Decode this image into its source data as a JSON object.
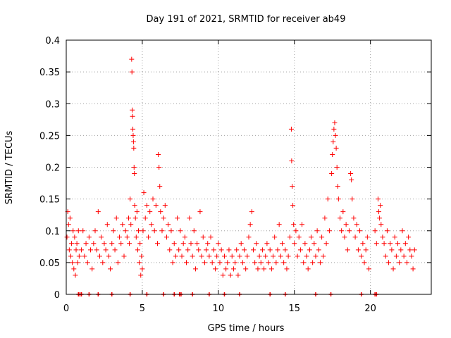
{
  "chart_data": {
    "type": "scatter",
    "title": "Day 191 of 2021, SRMTID for receiver ab49",
    "xlabel": "GPS time / hours",
    "ylabel": "SRMTID / TECUs",
    "xlim": [
      0,
      24
    ],
    "ylim": [
      0,
      0.4
    ],
    "xticks": [
      0,
      5,
      10,
      15,
      20
    ],
    "xtick_labels": [
      "0",
      "5",
      "10",
      "15",
      "20"
    ],
    "yticks": [
      0,
      0.05,
      0.1,
      0.15,
      0.2,
      0.25,
      0.3,
      0.35,
      0.4
    ],
    "ytick_labels": [
      "0",
      "0.05",
      "0.1",
      "0.15",
      "0.2",
      "0.25",
      "0.3",
      "0.35",
      "0.4"
    ],
    "grid": true,
    "marker": "plus",
    "color": "#ff0000",
    "series": [
      {
        "name": "SRMTID",
        "points": [
          [
            0.05,
            0.09
          ],
          [
            0.1,
            0.13
          ],
          [
            0.15,
            0.11
          ],
          [
            0.2,
            0.07
          ],
          [
            0.25,
            0.12
          ],
          [
            0.3,
            0.06
          ],
          [
            0.35,
            0.08
          ],
          [
            0.4,
            0.05
          ],
          [
            0.45,
            0.1
          ],
          [
            0.5,
            0.04
          ],
          [
            0.55,
            0.09
          ],
          [
            0.6,
            0.03
          ],
          [
            0.65,
            0.07
          ],
          [
            0.7,
            0.08
          ],
          [
            0.75,
            0.05
          ],
          [
            0.8,
            0.1
          ],
          [
            0.85,
            0.06
          ],
          [
            1.0,
            0.07
          ],
          [
            1.1,
            0.1
          ],
          [
            1.2,
            0.06
          ],
          [
            1.3,
            0.08
          ],
          [
            1.4,
            0.05
          ],
          [
            1.5,
            0.09
          ],
          [
            1.6,
            0.07
          ],
          [
            1.7,
            0.04
          ],
          [
            1.8,
            0.08
          ],
          [
            1.9,
            0.1
          ],
          [
            2.0,
            0.07
          ],
          [
            2.1,
            0.13
          ],
          [
            2.2,
            0.06
          ],
          [
            2.3,
            0.09
          ],
          [
            2.4,
            0.05
          ],
          [
            2.5,
            0.08
          ],
          [
            2.6,
            0.07
          ],
          [
            2.7,
            0.11
          ],
          [
            2.8,
            0.06
          ],
          [
            2.9,
            0.04
          ],
          [
            3.0,
            0.08
          ],
          [
            3.1,
            0.1
          ],
          [
            3.2,
            0.07
          ],
          [
            3.3,
            0.12
          ],
          [
            3.4,
            0.05
          ],
          [
            3.5,
            0.09
          ],
          [
            3.6,
            0.08
          ],
          [
            3.7,
            0.11
          ],
          [
            3.8,
            0.06
          ],
          [
            3.9,
            0.1
          ],
          [
            4.0,
            0.09
          ],
          [
            4.1,
            0.12
          ],
          [
            4.15,
            0.08
          ],
          [
            4.2,
            0.15
          ],
          [
            4.25,
            0.11
          ],
          [
            4.3,
            0.37
          ],
          [
            4.32,
            0.35
          ],
          [
            4.34,
            0.29
          ],
          [
            4.36,
            0.28
          ],
          [
            4.38,
            0.26
          ],
          [
            4.4,
            0.25
          ],
          [
            4.42,
            0.24
          ],
          [
            4.44,
            0.23
          ],
          [
            4.46,
            0.2
          ],
          [
            4.48,
            0.19
          ],
          [
            4.5,
            0.14
          ],
          [
            4.55,
            0.12
          ],
          [
            4.6,
            0.09
          ],
          [
            4.65,
            0.13
          ],
          [
            4.7,
            0.07
          ],
          [
            4.75,
            0.1
          ],
          [
            4.8,
            0.05
          ],
          [
            4.85,
            0.08
          ],
          [
            4.9,
            0.03
          ],
          [
            4.95,
            0.06
          ],
          [
            5.0,
            0.04
          ],
          [
            5.05,
            0.1
          ],
          [
            5.1,
            0.16
          ],
          [
            5.2,
            0.12
          ],
          [
            5.3,
            0.14
          ],
          [
            5.4,
            0.09
          ],
          [
            5.5,
            0.13
          ],
          [
            5.6,
            0.11
          ],
          [
            5.7,
            0.15
          ],
          [
            5.8,
            0.1
          ],
          [
            5.9,
            0.14
          ],
          [
            6.0,
            0.08
          ],
          [
            6.05,
            0.22
          ],
          [
            6.1,
            0.2
          ],
          [
            6.15,
            0.17
          ],
          [
            6.2,
            0.13
          ],
          [
            6.3,
            0.1
          ],
          [
            6.4,
            0.12
          ],
          [
            6.5,
            0.14
          ],
          [
            6.6,
            0.09
          ],
          [
            6.7,
            0.11
          ],
          [
            6.8,
            0.07
          ],
          [
            6.9,
            0.1
          ],
          [
            7.0,
            0.05
          ],
          [
            7.1,
            0.08
          ],
          [
            7.2,
            0.06
          ],
          [
            7.3,
            0.12
          ],
          [
            7.4,
            0.07
          ],
          [
            7.5,
            0.1
          ],
          [
            7.6,
            0.06
          ],
          [
            7.7,
            0.08
          ],
          [
            7.8,
            0.09
          ],
          [
            7.9,
            0.05
          ],
          [
            8.0,
            0.07
          ],
          [
            8.1,
            0.12
          ],
          [
            8.2,
            0.08
          ],
          [
            8.3,
            0.06
          ],
          [
            8.4,
            0.1
          ],
          [
            8.5,
            0.04
          ],
          [
            8.6,
            0.08
          ],
          [
            8.7,
            0.07
          ],
          [
            8.8,
            0.13
          ],
          [
            8.9,
            0.06
          ],
          [
            9.0,
            0.09
          ],
          [
            9.1,
            0.05
          ],
          [
            9.2,
            0.07
          ],
          [
            9.3,
            0.08
          ],
          [
            9.4,
            0.06
          ],
          [
            9.5,
            0.09
          ],
          [
            9.6,
            0.05
          ],
          [
            9.7,
            0.07
          ],
          [
            9.8,
            0.04
          ],
          [
            9.9,
            0.06
          ],
          [
            10.0,
            0.08
          ],
          [
            10.1,
            0.05
          ],
          [
            10.2,
            0.07
          ],
          [
            10.3,
            0.03
          ],
          [
            10.4,
            0.06
          ],
          [
            10.5,
            0.04
          ],
          [
            10.6,
            0.05
          ],
          [
            10.7,
            0.07
          ],
          [
            10.8,
            0.03
          ],
          [
            10.9,
            0.06
          ],
          [
            11.0,
            0.04
          ],
          [
            11.1,
            0.05
          ],
          [
            11.2,
            0.07
          ],
          [
            11.3,
            0.03
          ],
          [
            11.4,
            0.06
          ],
          [
            11.5,
            0.08
          ],
          [
            11.6,
            0.05
          ],
          [
            11.7,
            0.07
          ],
          [
            11.8,
            0.04
          ],
          [
            11.9,
            0.06
          ],
          [
            12.0,
            0.09
          ],
          [
            12.1,
            0.11
          ],
          [
            12.2,
            0.13
          ],
          [
            12.3,
            0.07
          ],
          [
            12.4,
            0.05
          ],
          [
            12.5,
            0.08
          ],
          [
            12.6,
            0.04
          ],
          [
            12.7,
            0.06
          ],
          [
            12.8,
            0.05
          ],
          [
            12.9,
            0.07
          ],
          [
            13.0,
            0.04
          ],
          [
            13.1,
            0.06
          ],
          [
            13.2,
            0.08
          ],
          [
            13.3,
            0.05
          ],
          [
            13.4,
            0.07
          ],
          [
            13.5,
            0.04
          ],
          [
            13.6,
            0.06
          ],
          [
            13.7,
            0.09
          ],
          [
            13.8,
            0.05
          ],
          [
            13.9,
            0.07
          ],
          [
            14.0,
            0.11
          ],
          [
            14.1,
            0.06
          ],
          [
            14.2,
            0.08
          ],
          [
            14.3,
            0.05
          ],
          [
            14.4,
            0.07
          ],
          [
            14.5,
            0.04
          ],
          [
            14.6,
            0.06
          ],
          [
            14.7,
            0.09
          ],
          [
            14.8,
            0.26
          ],
          [
            14.82,
            0.21
          ],
          [
            14.86,
            0.17
          ],
          [
            14.9,
            0.14
          ],
          [
            14.95,
            0.11
          ],
          [
            15.0,
            0.08
          ],
          [
            15.1,
            0.1
          ],
          [
            15.2,
            0.06
          ],
          [
            15.3,
            0.09
          ],
          [
            15.4,
            0.07
          ],
          [
            15.5,
            0.11
          ],
          [
            15.6,
            0.05
          ],
          [
            15.7,
            0.08
          ],
          [
            15.8,
            0.06
          ],
          [
            15.9,
            0.04
          ],
          [
            16.0,
            0.07
          ],
          [
            16.1,
            0.09
          ],
          [
            16.2,
            0.05
          ],
          [
            16.3,
            0.08
          ],
          [
            16.4,
            0.06
          ],
          [
            16.5,
            0.1
          ],
          [
            16.6,
            0.07
          ],
          [
            16.7,
            0.05
          ],
          [
            16.8,
            0.09
          ],
          [
            16.9,
            0.06
          ],
          [
            17.0,
            0.12
          ],
          [
            17.1,
            0.08
          ],
          [
            17.2,
            0.15
          ],
          [
            17.3,
            0.1
          ],
          [
            17.45,
            0.19
          ],
          [
            17.5,
            0.22
          ],
          [
            17.55,
            0.24
          ],
          [
            17.6,
            0.26
          ],
          [
            17.65,
            0.27
          ],
          [
            17.7,
            0.25
          ],
          [
            17.75,
            0.23
          ],
          [
            17.8,
            0.2
          ],
          [
            17.85,
            0.17
          ],
          [
            17.9,
            0.15
          ],
          [
            18.0,
            0.12
          ],
          [
            18.1,
            0.1
          ],
          [
            18.2,
            0.13
          ],
          [
            18.3,
            0.09
          ],
          [
            18.4,
            0.11
          ],
          [
            18.5,
            0.07
          ],
          [
            18.6,
            0.1
          ],
          [
            18.7,
            0.19
          ],
          [
            18.75,
            0.18
          ],
          [
            18.8,
            0.15
          ],
          [
            18.9,
            0.12
          ],
          [
            19.0,
            0.09
          ],
          [
            19.1,
            0.11
          ],
          [
            19.2,
            0.07
          ],
          [
            19.3,
            0.1
          ],
          [
            19.4,
            0.06
          ],
          [
            19.5,
            0.08
          ],
          [
            19.6,
            0.05
          ],
          [
            19.7,
            0.07
          ],
          [
            19.8,
            0.09
          ],
          [
            19.9,
            0.04
          ],
          [
            20.3,
            0.1
          ],
          [
            20.4,
            0.08
          ],
          [
            20.5,
            0.15
          ],
          [
            20.55,
            0.13
          ],
          [
            20.6,
            0.12
          ],
          [
            20.65,
            0.14
          ],
          [
            20.7,
            0.11
          ],
          [
            20.8,
            0.09
          ],
          [
            20.9,
            0.08
          ],
          [
            21.0,
            0.06
          ],
          [
            21.1,
            0.1
          ],
          [
            21.2,
            0.05
          ],
          [
            21.3,
            0.08
          ],
          [
            21.4,
            0.07
          ],
          [
            21.5,
            0.04
          ],
          [
            21.6,
            0.09
          ],
          [
            21.7,
            0.06
          ],
          [
            21.8,
            0.08
          ],
          [
            21.9,
            0.05
          ],
          [
            22.0,
            0.07
          ],
          [
            22.1,
            0.1
          ],
          [
            22.2,
            0.06
          ],
          [
            22.3,
            0.08
          ],
          [
            22.4,
            0.05
          ],
          [
            22.5,
            0.09
          ],
          [
            22.6,
            0.07
          ],
          [
            22.7,
            0.06
          ],
          [
            22.8,
            0.04
          ],
          [
            22.9,
            0.07
          ]
        ]
      }
    ],
    "gap_markers_x": [
      0.8,
      0.9,
      1.0,
      1.5,
      2.1,
      3.0,
      4.2,
      5.3,
      6.4,
      7.1,
      7.45,
      7.55,
      8.3,
      9.4,
      10.4,
      11.4,
      13.4,
      14.4,
      16.4,
      17.4,
      19.4,
      20.3,
      20.4
    ]
  }
}
